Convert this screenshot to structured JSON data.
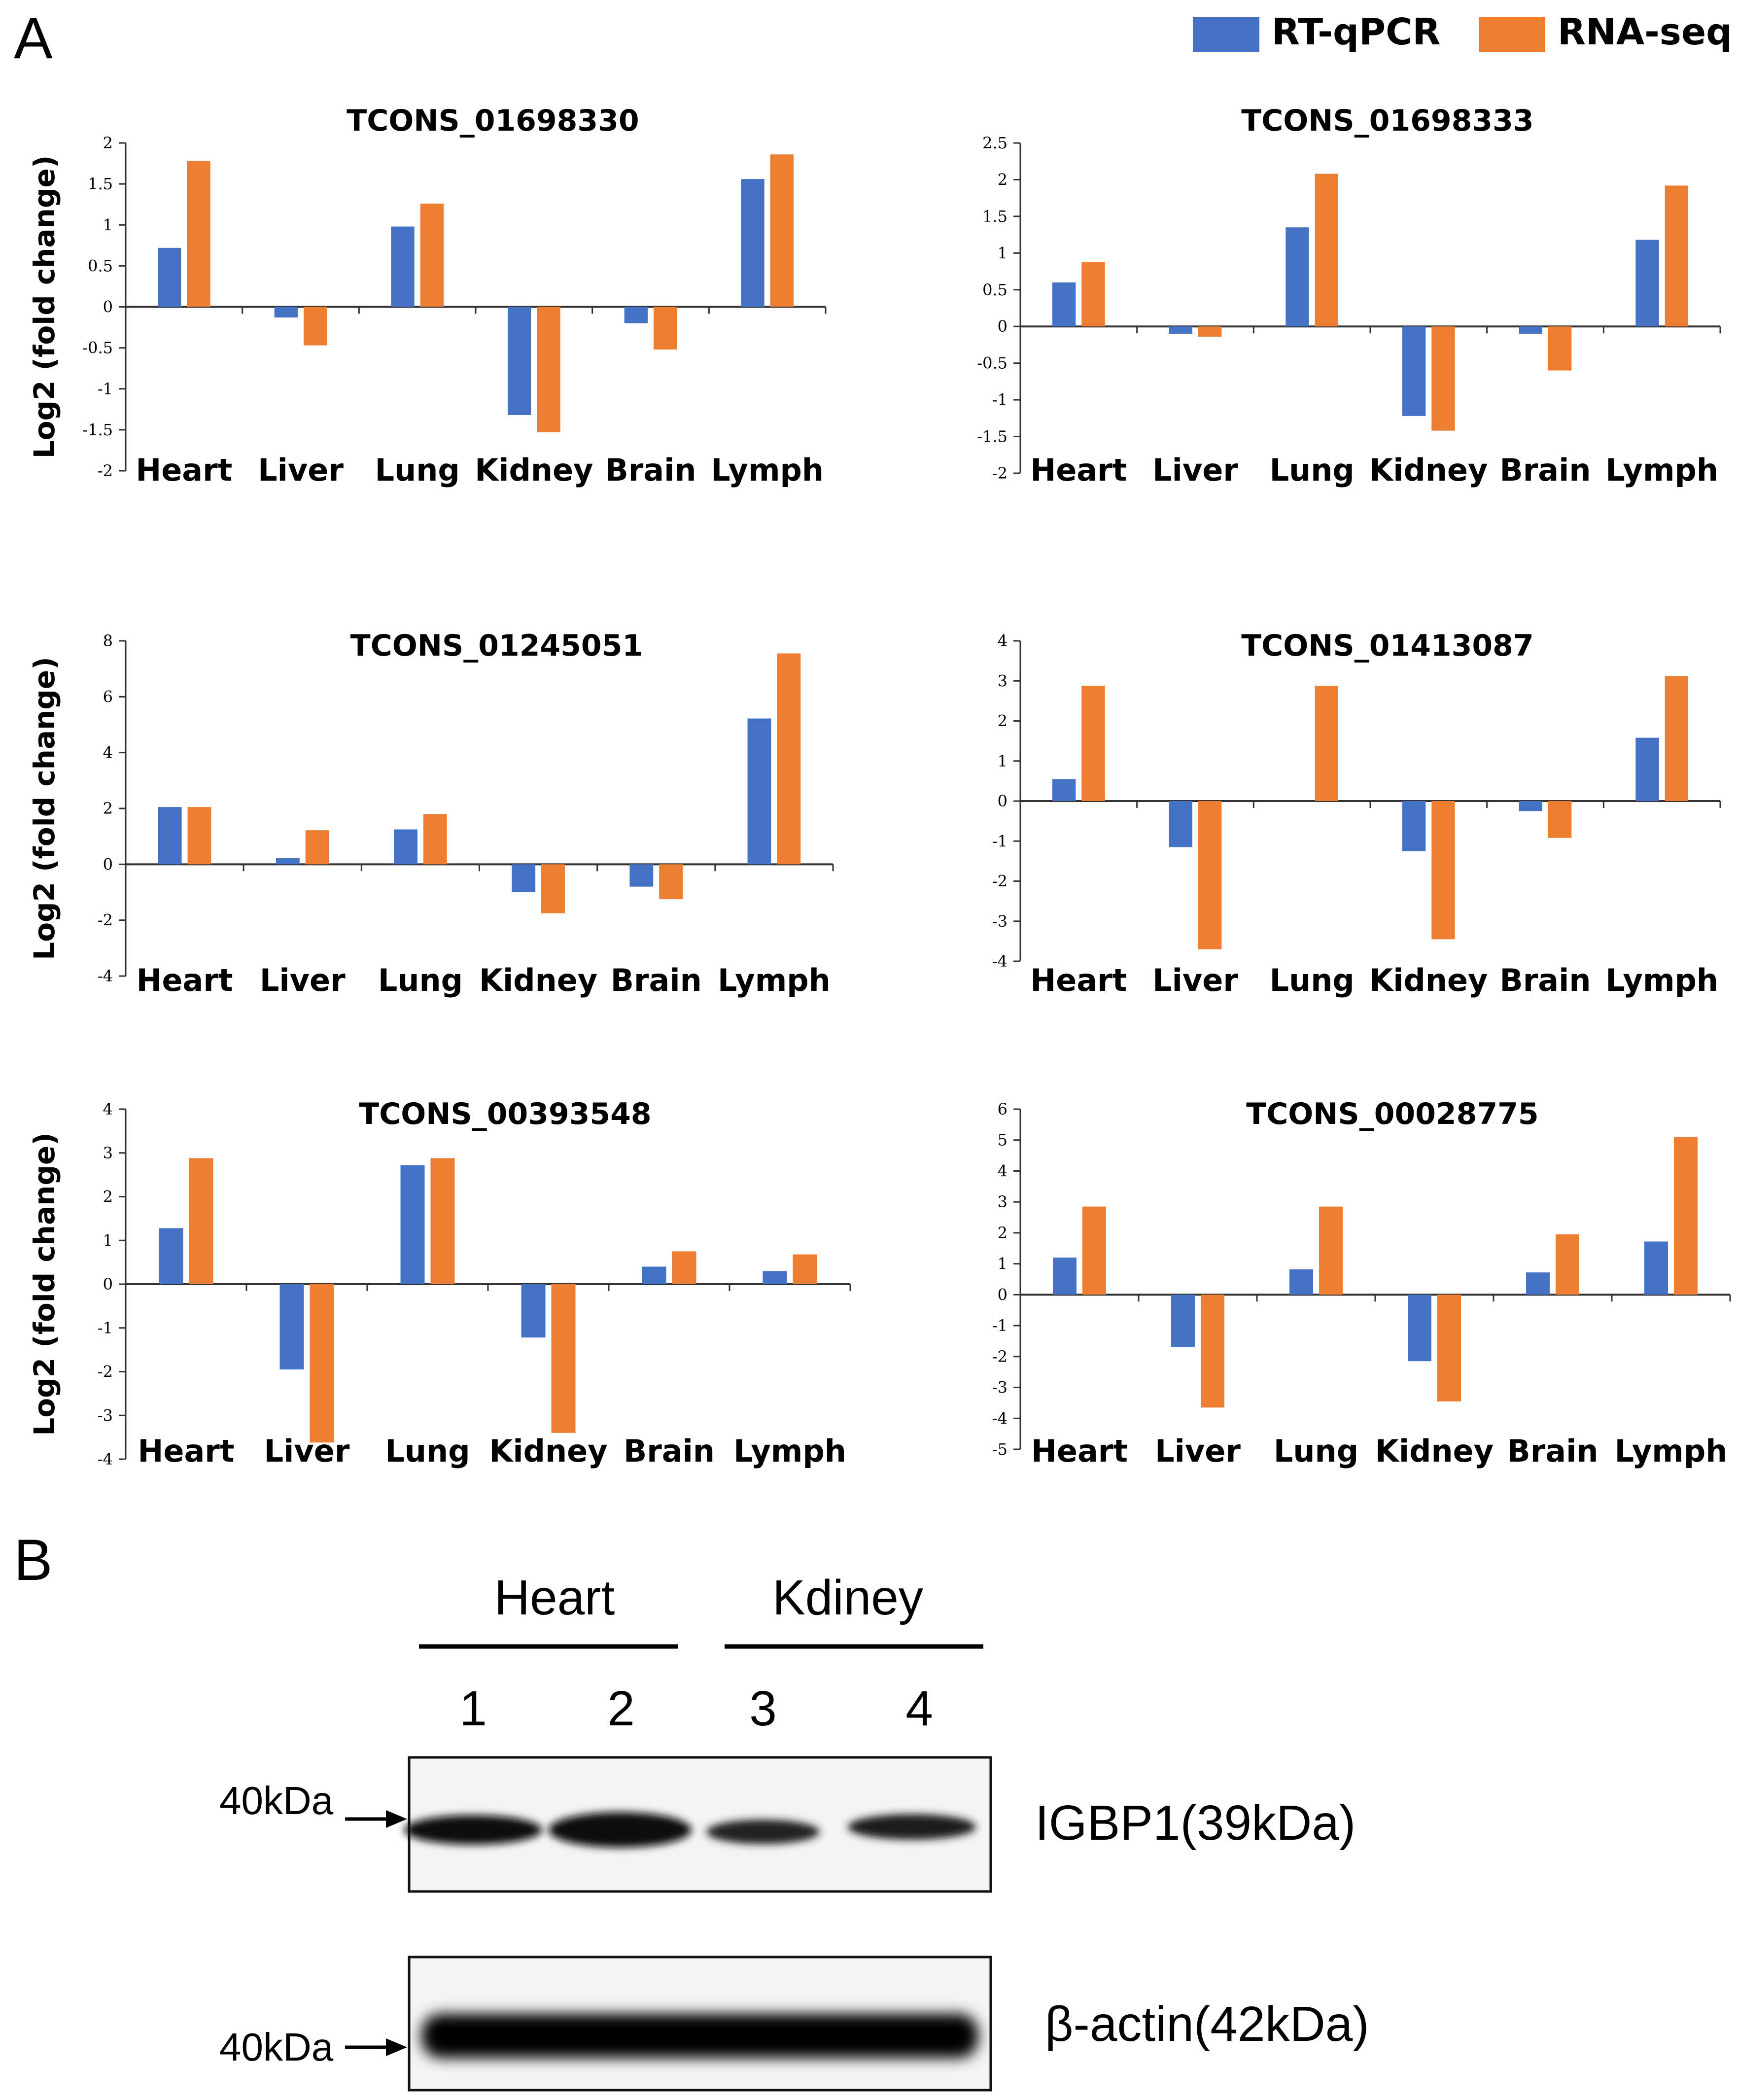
{
  "panel_a_label": "A",
  "panel_b_label": "B",
  "legend": {
    "items": [
      {
        "label": "RT-qPCR",
        "color": "#4472C4"
      },
      {
        "label": "RNA-seq",
        "color": "#ED7D31"
      }
    ]
  },
  "chart_data": [
    {
      "type": "bar",
      "title": "TCONS_01698330",
      "ylabel": "Log2 (fold change)",
      "ylim": [
        -2,
        2
      ],
      "yticks": [
        "2",
        "1.5",
        "1",
        "0.5",
        "0",
        "-0.5",
        "-1",
        "-1.5",
        "-2"
      ],
      "categories": [
        "Heart",
        "Liver",
        "Lung",
        "Kidney",
        "Brain",
        "Lymph"
      ],
      "series": [
        {
          "name": "RT-qPCR",
          "values": [
            0.72,
            -0.13,
            0.98,
            -1.32,
            -0.2,
            1.56
          ]
        },
        {
          "name": "RNA-seq",
          "values": [
            1.78,
            -0.47,
            1.26,
            -1.53,
            -0.52,
            1.86
          ]
        }
      ]
    },
    {
      "type": "bar",
      "title": "TCONS_01698333",
      "ylabel": "",
      "ylim": [
        -2,
        2.5
      ],
      "yticks": [
        "2.5",
        "2",
        "1.5",
        "1",
        "0.5",
        "0",
        "-0.5",
        "-1",
        "-1.5",
        "-2"
      ],
      "categories": [
        "Heart",
        "Liver",
        "Lung",
        "Kidney",
        "Brain",
        "Lymph"
      ],
      "series": [
        {
          "name": "RT-qPCR",
          "values": [
            0.6,
            -0.1,
            1.35,
            -1.22,
            -0.1,
            1.18
          ]
        },
        {
          "name": "RNA-seq",
          "values": [
            0.88,
            -0.14,
            2.08,
            -1.42,
            -0.6,
            1.92
          ]
        }
      ]
    },
    {
      "type": "bar",
      "title": "TCONS_01245051",
      "ylabel": "Log2 (fold change)",
      "ylim": [
        -4,
        8
      ],
      "yticks": [
        "8",
        "6",
        "4",
        "2",
        "0",
        "-2",
        "-4"
      ],
      "categories": [
        "Heart",
        "Liver",
        "Lung",
        "Kidney",
        "Brain",
        "Lymph"
      ],
      "series": [
        {
          "name": "RT-qPCR",
          "values": [
            2.05,
            0.22,
            1.25,
            -1.0,
            -0.8,
            5.22
          ]
        },
        {
          "name": "RNA-seq",
          "values": [
            2.05,
            1.22,
            1.8,
            -1.75,
            -1.25,
            7.55
          ]
        }
      ]
    },
    {
      "type": "bar",
      "title": "TCONS_01413087",
      "ylabel": "",
      "ylim": [
        -4,
        4
      ],
      "yticks": [
        "4",
        "3",
        "2",
        "1",
        "0",
        "-1",
        "-2",
        "-3",
        "-4"
      ],
      "categories": [
        "Heart",
        "Liver",
        "Lung",
        "Kidney",
        "Brain",
        "Lymph"
      ],
      "series": [
        {
          "name": "RT-qPCR",
          "values": [
            0.55,
            -1.15,
            0.0,
            -1.25,
            -0.25,
            1.58
          ]
        },
        {
          "name": "RNA-seq",
          "values": [
            2.88,
            -3.7,
            2.88,
            -3.45,
            -0.92,
            3.12
          ]
        }
      ]
    },
    {
      "type": "bar",
      "title": "TCONS_00393548",
      "ylabel": "Log2 (fold change)",
      "ylim": [
        -4,
        4
      ],
      "yticks": [
        "4",
        "3",
        "2",
        "1",
        "0",
        "-1",
        "-2",
        "-3",
        "-4"
      ],
      "categories": [
        "Heart",
        "Liver",
        "Lung",
        "Kidney",
        "Brain",
        "Lymph"
      ],
      "series": [
        {
          "name": "RT-qPCR",
          "values": [
            1.28,
            -1.95,
            2.72,
            -1.22,
            0.4,
            0.3
          ]
        },
        {
          "name": "RNA-seq",
          "values": [
            2.88,
            -3.62,
            2.88,
            -3.4,
            0.75,
            0.68
          ]
        }
      ]
    },
    {
      "type": "bar",
      "title": "TCONS_00028775",
      "ylabel": "",
      "ylim": [
        -5,
        6
      ],
      "yticks": [
        "6",
        "5",
        "4",
        "3",
        "2",
        "1",
        "0",
        "-1",
        "-2",
        "-3",
        "-4",
        "-5"
      ],
      "categories": [
        "Heart",
        "Liver",
        "Lung",
        "Kidney",
        "Brain",
        "Lymph"
      ],
      "series": [
        {
          "name": "RT-qPCR",
          "values": [
            1.2,
            -1.7,
            0.82,
            -2.15,
            0.72,
            1.72
          ]
        },
        {
          "name": "RNA-seq",
          "values": [
            2.85,
            -3.65,
            2.85,
            -3.45,
            1.95,
            5.1
          ]
        }
      ]
    }
  ],
  "western_blot": {
    "group_labels": [
      "Heart",
      "Kdiney"
    ],
    "lane_labels": [
      "1",
      "2",
      "3",
      "4"
    ],
    "igbp1": {
      "marker": "40kDa",
      "label": "IGBP1(39kDa)"
    },
    "actin": {
      "marker": "40kDa",
      "label": "β-actin(42kDa)"
    }
  }
}
